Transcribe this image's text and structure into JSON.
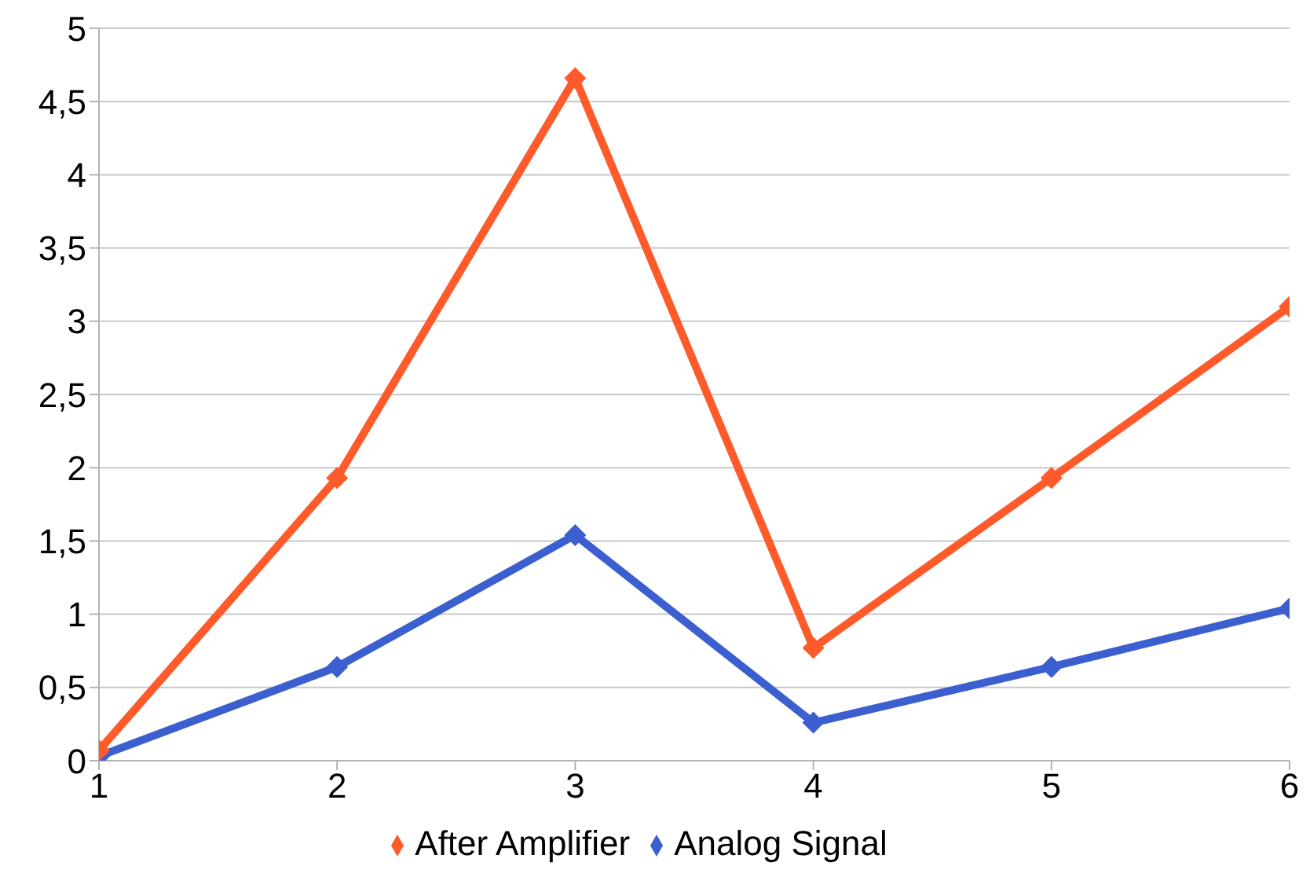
{
  "chart_data": {
    "type": "line",
    "x": [
      1,
      2,
      3,
      4,
      5,
      6
    ],
    "series": [
      {
        "name": "Analog Signal",
        "color": "#3c5fd0",
        "values": [
          0.03,
          0.64,
          1.54,
          0.26,
          0.64,
          1.04
        ]
      },
      {
        "name": "After Amplifier",
        "color": "#ff5a2a",
        "values": [
          0.07,
          1.93,
          4.66,
          0.77,
          1.93,
          3.1
        ]
      }
    ],
    "xlim": [
      1,
      6
    ],
    "xticks": [
      1,
      2,
      3,
      4,
      5,
      6
    ],
    "ylim": [
      0,
      5
    ],
    "yticks": [
      0,
      {
        "value": 0.5,
        "label": "0,5"
      },
      1,
      {
        "value": 1.5,
        "label": "1,5"
      },
      2,
      {
        "value": 2.5,
        "label": "2,5"
      },
      3,
      {
        "value": 3.5,
        "label": "3,5"
      },
      4,
      {
        "value": 4.5,
        "label": "4,5"
      },
      5
    ],
    "grid": "y",
    "legend": "bottom",
    "marker": "diamond",
    "line_style": "solid"
  }
}
